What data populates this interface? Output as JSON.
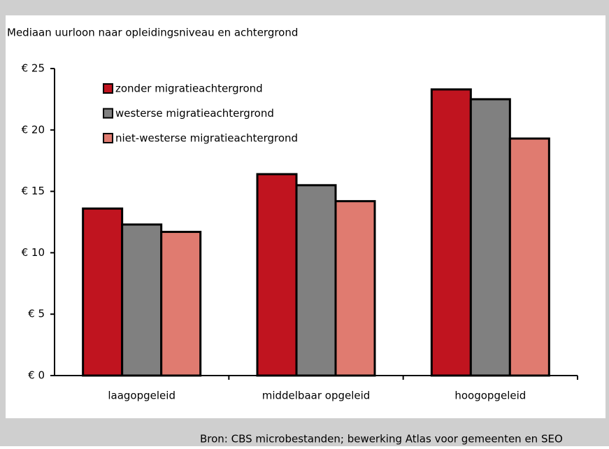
{
  "chart_data": {
    "type": "bar",
    "title": "Mediaan uurloon naar opleidingsniveau en achtergrond",
    "source": "Bron: CBS microbestanden; bewerking Atlas voor gemeenten en SEO",
    "categories": [
      "laagopgeleid",
      "middelbaar opgeleid",
      "hoogopgeleid"
    ],
    "series": [
      {
        "name": "zonder migratieachtergrond",
        "color": "#c0141f",
        "values": [
          13.6,
          16.4,
          23.3
        ]
      },
      {
        "name": "westerse migratieachtergrond",
        "color": "#808080",
        "values": [
          12.3,
          15.5,
          22.5
        ]
      },
      {
        "name": "niet-westerse migratieachtergrond",
        "color": "#e07b70",
        "values": [
          11.7,
          14.2,
          19.3
        ]
      }
    ],
    "ylim": [
      0,
      25
    ],
    "yticks": [
      {
        "value": 0,
        "label": "€ 0"
      },
      {
        "value": 5,
        "label": "€ 5"
      },
      {
        "value": 10,
        "label": "€ 10"
      },
      {
        "value": 15,
        "label": "€ 15"
      },
      {
        "value": 20,
        "label": "€ 20"
      },
      {
        "value": 25,
        "label": "€ 25"
      }
    ],
    "legend": "top-left"
  }
}
